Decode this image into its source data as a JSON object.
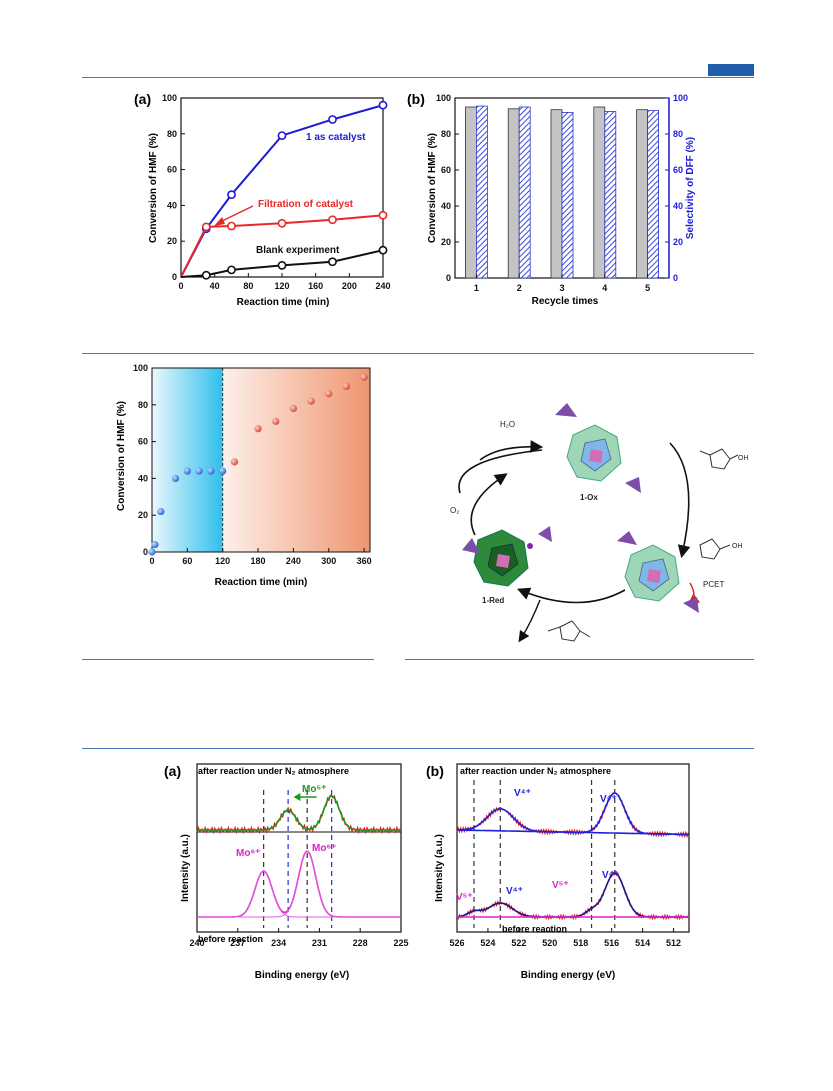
{
  "page": {
    "accent_color": "#1f5ea8",
    "rule_color": "#4a78b8"
  },
  "fig1": {
    "a": {
      "panel_label": "(a)",
      "xlabel": "Reaction time (min)",
      "ylabel": "Conversion of HMF (%)",
      "xticks": [
        "0",
        "40",
        "80",
        "120",
        "160",
        "200",
        "240"
      ],
      "yticks": [
        "0",
        "20",
        "40",
        "60",
        "80",
        "100"
      ],
      "annotations": {
        "catalyst": "1 as catalyst",
        "filtration": "Filtration of catalyst",
        "blank": "Blank experiment"
      }
    },
    "b": {
      "panel_label": "(b)",
      "xlabel": "Recycle times",
      "ylabel_left": "Conversion of HMF (%)",
      "ylabel_right": "Selectivity of DFF (%)",
      "xticks": [
        "1",
        "2",
        "3",
        "4",
        "5"
      ],
      "yticks": [
        "0",
        "20",
        "40",
        "60",
        "80",
        "100"
      ]
    }
  },
  "fig2": {
    "left": {
      "xlabel": "Reaction time (min)",
      "ylabel": "Conversion of HMF (%)",
      "xticks": [
        "0",
        "60",
        "120",
        "180",
        "240",
        "300",
        "360"
      ],
      "yticks": [
        "0",
        "20",
        "40",
        "60",
        "80",
        "100"
      ]
    },
    "scheme": {
      "ox_label": "1-Ox",
      "red_label": "1-Red",
      "h2o": "H₂O",
      "o2": "O₂",
      "pcet": "PCET",
      "oh1": "OH",
      "oh2": "OH"
    }
  },
  "fig3": {
    "a": {
      "panel_label": "(a)",
      "top_label": "after reaction under N₂ atmosphere",
      "bottom_label": "before reaction",
      "xlabel": "Binding energy (eV)",
      "ylabel": "Intensity (a.u.)",
      "xticks": [
        "240",
        "237",
        "234",
        "231",
        "228",
        "225"
      ],
      "mo5": "Mo⁵⁺",
      "mo6_left": "Mo⁶⁺",
      "mo6_right": "Mo⁶⁺"
    },
    "b": {
      "panel_label": "(b)",
      "top_label": "after reaction under N₂ atmosphere",
      "bottom_label": "before reaction",
      "xlabel": "Binding energy (eV)",
      "ylabel": "Intensity (a.u.)",
      "xticks": [
        "526",
        "524",
        "522",
        "520",
        "518",
        "516",
        "514",
        "512"
      ],
      "v4_top_left": "V⁴⁺",
      "v4_top_right": "V⁴⁺",
      "v5_left": "V⁵⁺",
      "v4_bottom_left": "V⁴⁺",
      "v5_mid": "V⁵⁺",
      "v4_bottom_right": "V⁴⁺"
    }
  },
  "chart_data": [
    {
      "type": "line",
      "x": [
        0,
        30,
        60,
        120,
        180,
        240
      ],
      "series": [
        {
          "name": "1 as catalyst",
          "color": "#1c1cd8",
          "x": [
            0,
            30,
            60,
            120,
            180,
            240
          ],
          "values": [
            0,
            27,
            46,
            79,
            88,
            96
          ]
        },
        {
          "name": "Filtration of catalyst",
          "color": "#e82828",
          "x": [
            0,
            30,
            60,
            120,
            180,
            240
          ],
          "values": [
            0,
            28,
            28.5,
            30,
            32,
            34.5
          ]
        },
        {
          "name": "Blank experiment",
          "color": "#111111",
          "x": [
            0,
            30,
            60,
            120,
            180,
            240
          ],
          "values": [
            0,
            1,
            4,
            6.5,
            8.5,
            15
          ]
        }
      ],
      "xlim": [
        0,
        240
      ],
      "ylim": [
        0,
        100
      ]
    },
    {
      "type": "bar",
      "categories": [
        "1",
        "2",
        "3",
        "4",
        "5"
      ],
      "series": [
        {
          "name": "Conversion of HMF (%)",
          "color": "#c0c0c0",
          "values": [
            95,
            94,
            93.5,
            95,
            93.5
          ]
        },
        {
          "name": "Selectivity of DFF (%)",
          "color": "#3a4ae0",
          "values": [
            95.5,
            95,
            92,
            92.5,
            93
          ]
        }
      ],
      "ylim": [
        0,
        100
      ]
    },
    {
      "type": "scatter",
      "series": [
        {
          "color": "#2a6cd8",
          "x": [
            0,
            5,
            15,
            40,
            60,
            80,
            100,
            120
          ],
          "values": [
            0,
            4,
            22,
            40,
            44,
            44,
            44,
            44
          ]
        },
        {
          "color": "#e8584a",
          "x": [
            140,
            180,
            210,
            240,
            270,
            300,
            330,
            360
          ],
          "values": [
            49,
            67,
            71,
            78,
            82,
            86,
            90,
            95
          ]
        }
      ],
      "xlim": [
        0,
        370
      ],
      "ylim": [
        0,
        100
      ],
      "background_regions": [
        {
          "from": 0,
          "to": 120,
          "color": "#3fc6ee"
        },
        {
          "from": 120,
          "to": 370,
          "color": "#f5a47c"
        }
      ]
    },
    {
      "type": "line",
      "xlim": [
        240,
        225
      ],
      "reference_lines": [
        235.1,
        233.3,
        231.9,
        230.1
      ],
      "peaks_after": [
        233.3,
        230.1
      ],
      "peaks_before": [
        235.1,
        231.9
      ]
    },
    {
      "type": "line",
      "xlim": [
        526,
        511
      ],
      "reference_lines": [
        524.9,
        523.2,
        517.3,
        515.8
      ],
      "peaks_after": [
        523.2,
        515.8
      ],
      "peaks_before": [
        524.9,
        523.2,
        517.3,
        515.8
      ]
    }
  ]
}
